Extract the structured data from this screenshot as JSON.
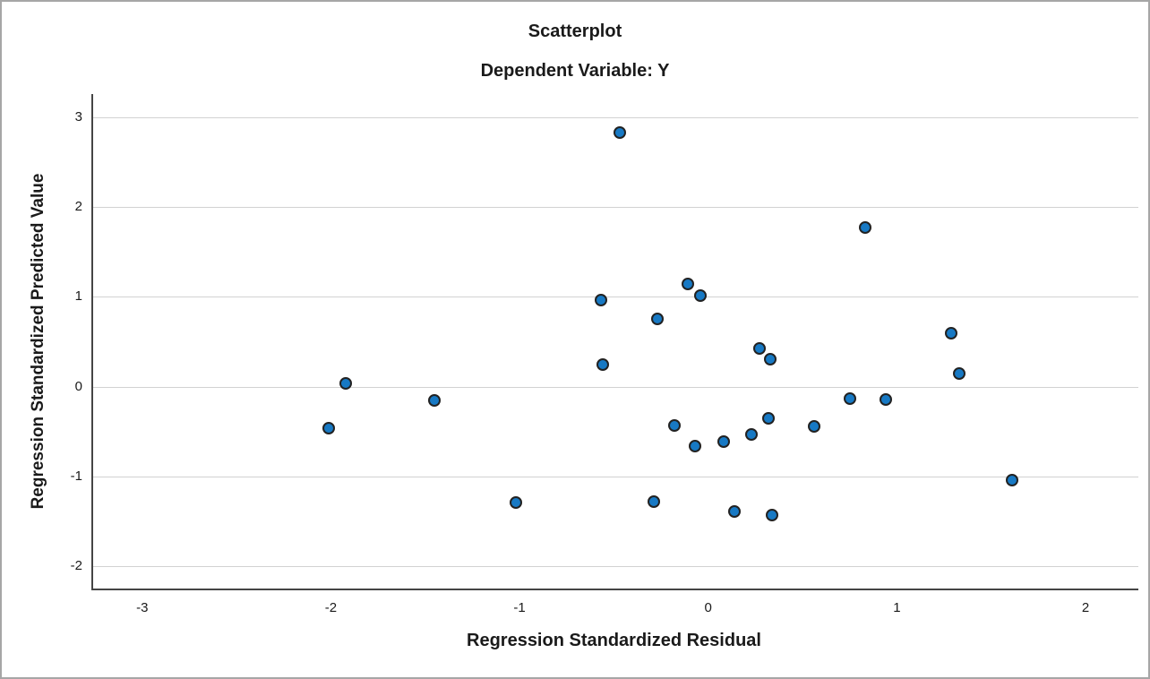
{
  "chart_data": {
    "type": "scatter",
    "title": "Scatterplot",
    "subtitle": "Dependent Variable: Y",
    "xlabel": "Regression Standardized Residual",
    "ylabel": "Regression Standardized Predicted Value",
    "xlim": [
      -3.26,
      2.28
    ],
    "ylim": [
      -2.25,
      3.26
    ],
    "x_ticks": [
      -3,
      -2,
      -1,
      0,
      1,
      2
    ],
    "y_ticks": [
      3,
      2,
      1,
      0,
      -1,
      -2
    ],
    "grid": "horizontal",
    "legend": "none",
    "points": [
      {
        "x": -0.47,
        "y": 2.83
      },
      {
        "x": 0.83,
        "y": 1.77
      },
      {
        "x": -0.11,
        "y": 1.14
      },
      {
        "x": -0.04,
        "y": 1.01
      },
      {
        "x": -0.57,
        "y": 0.96
      },
      {
        "x": -0.27,
        "y": 0.75
      },
      {
        "x": 1.29,
        "y": 0.59
      },
      {
        "x": 0.27,
        "y": 0.43
      },
      {
        "x": 0.33,
        "y": 0.31
      },
      {
        "x": -0.56,
        "y": 0.25
      },
      {
        "x": 1.33,
        "y": 0.15
      },
      {
        "x": -1.92,
        "y": 0.04
      },
      {
        "x": 0.75,
        "y": -0.13
      },
      {
        "x": 0.94,
        "y": -0.14
      },
      {
        "x": -1.45,
        "y": -0.15
      },
      {
        "x": 0.32,
        "y": -0.35
      },
      {
        "x": -0.18,
        "y": -0.43
      },
      {
        "x": 0.56,
        "y": -0.44
      },
      {
        "x": -2.01,
        "y": -0.46
      },
      {
        "x": 0.23,
        "y": -0.53
      },
      {
        "x": 0.08,
        "y": -0.61
      },
      {
        "x": -0.07,
        "y": -0.66
      },
      {
        "x": 1.61,
        "y": -1.04
      },
      {
        "x": -1.02,
        "y": -1.29
      },
      {
        "x": -0.29,
        "y": -1.28
      },
      {
        "x": 0.14,
        "y": -1.39
      },
      {
        "x": 0.34,
        "y": -1.43
      }
    ],
    "colors": {
      "marker_fill": "#1779c4",
      "marker_stroke": "#222222",
      "gridline": "#d2d2d2",
      "axis_line": "#454545",
      "text": "#1a1a1a",
      "outer_border": "#a6a6a6",
      "background": "#ffffff"
    }
  }
}
